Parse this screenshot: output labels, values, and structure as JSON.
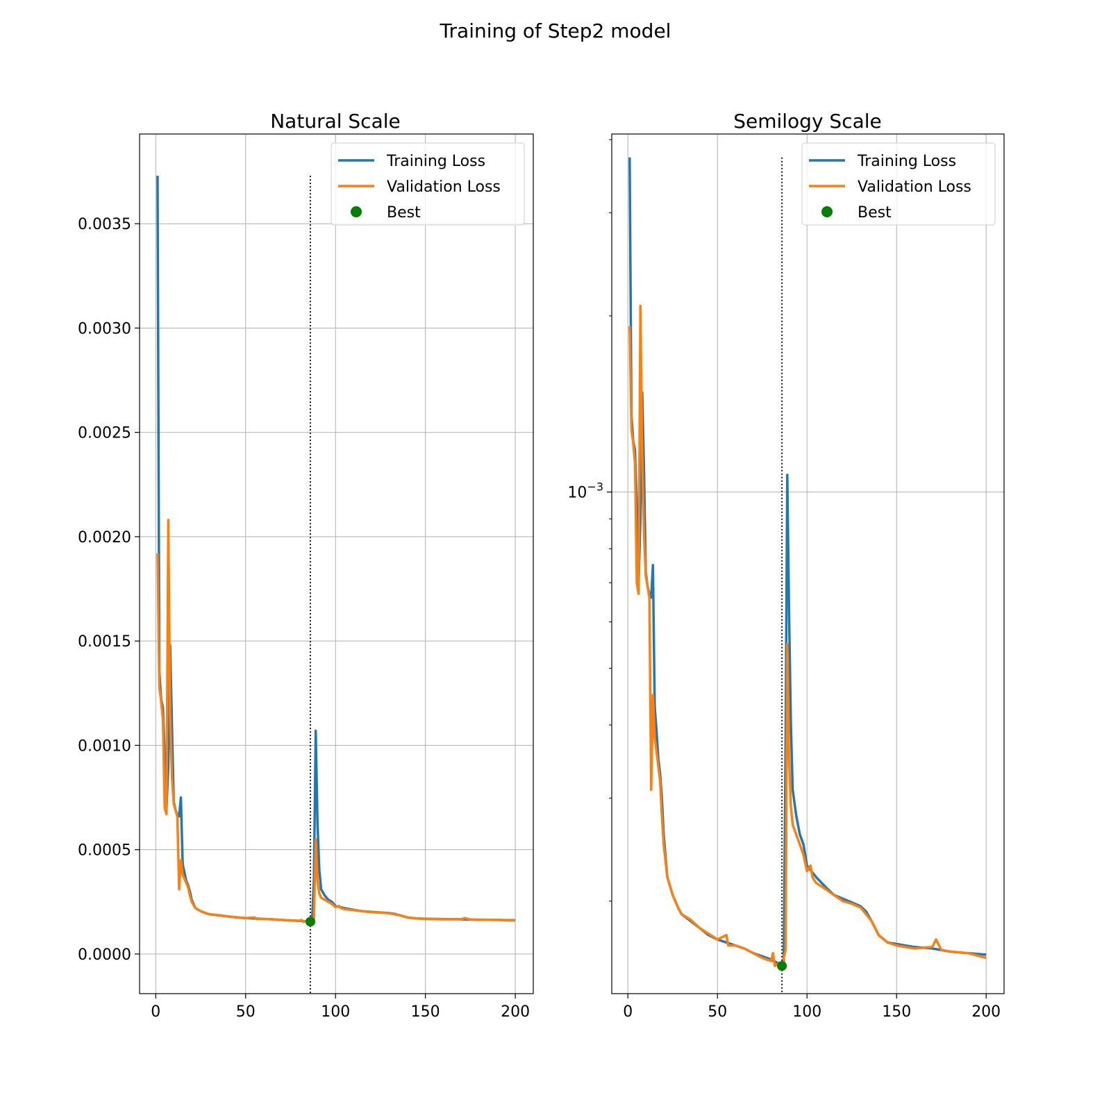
{
  "figure": {
    "title": "Training of Step2 model"
  },
  "colors": {
    "training": "#1f77b4",
    "validation": "#ff7f0e",
    "best": "#008000",
    "grid": "#b0b0b0"
  },
  "chart_data": [
    {
      "type": "line",
      "title": "Natural Scale",
      "xlabel": "",
      "ylabel": "",
      "xlim": [
        -9,
        210
      ],
      "ylim": [
        -0.00019,
        0.00393
      ],
      "yscale": "linear",
      "xticks": [
        0,
        50,
        100,
        150,
        200
      ],
      "xtick_labels": [
        "0",
        "50",
        "100",
        "150",
        "200"
      ],
      "yticks": [
        0.0,
        0.0005,
        0.001,
        0.0015,
        0.002,
        0.0025,
        0.003,
        0.0035
      ],
      "ytick_labels": [
        "0.0000",
        "0.0005",
        "0.0010",
        "0.0015",
        "0.0020",
        "0.0025",
        "0.0030",
        "0.0035"
      ],
      "grid": true,
      "legend": {
        "position": "top-right",
        "entries": [
          "Training Loss",
          "Validation Loss",
          "Best"
        ]
      },
      "vline": {
        "x": 86,
        "style": "dotted",
        "ymin": 0.0,
        "ymax": 0.00373
      },
      "best_point": {
        "x": 86,
        "y": 0.000155
      }
    },
    {
      "type": "line",
      "title": "Semilogy Scale",
      "xlabel": "",
      "ylabel": "",
      "xlim": [
        -9,
        210
      ],
      "ylim": [
        0.000139,
        0.00409
      ],
      "yscale": "log",
      "xticks": [
        0,
        50,
        100,
        150,
        200
      ],
      "xtick_labels": [
        "0",
        "50",
        "100",
        "150",
        "200"
      ],
      "major_yticks": [
        0.001
      ],
      "major_ytick_labels": [
        "10"
      ],
      "major_ytick_sup": [
        "−3"
      ],
      "minor_yticks": [
        0.0002,
        0.0003,
        0.0004,
        0.0005,
        0.0006,
        0.0007,
        0.0008,
        0.0009,
        0.002,
        0.003,
        0.004
      ],
      "grid": true,
      "legend": {
        "position": "top-right",
        "entries": [
          "Training Loss",
          "Validation Loss",
          "Best"
        ]
      },
      "vline": {
        "x": 86,
        "style": "dotted",
        "ymin": 0.000155,
        "ymax": 0.00373
      },
      "best_point": {
        "x": 86,
        "y": 0.000155
      }
    }
  ],
  "series": [
    {
      "name": "Training Loss",
      "points": [
        [
          1,
          0.00373
        ],
        [
          2,
          0.00135
        ],
        [
          3,
          0.00122
        ],
        [
          4,
          0.00118
        ],
        [
          5,
          0.00095
        ],
        [
          6,
          0.0007
        ],
        [
          7,
          0.0009
        ],
        [
          8,
          0.00148
        ],
        [
          9,
          0.0011
        ],
        [
          10,
          0.00073
        ],
        [
          11,
          0.00069
        ],
        [
          12,
          0.00067
        ],
        [
          13,
          0.00066
        ],
        [
          14,
          0.00075
        ],
        [
          15,
          0.00043
        ],
        [
          16,
          0.00039
        ],
        [
          17,
          0.00035
        ],
        [
          18,
          0.00033
        ],
        [
          19,
          0.0003
        ],
        [
          20,
          0.00026
        ],
        [
          22,
          0.00022
        ],
        [
          25,
          0.000205
        ],
        [
          28,
          0.000195
        ],
        [
          30,
          0.00019
        ],
        [
          35,
          0.000185
        ],
        [
          40,
          0.00018
        ],
        [
          45,
          0.000175
        ],
        [
          50,
          0.000172
        ],
        [
          55,
          0.00017
        ],
        [
          60,
          0.000168
        ],
        [
          65,
          0.000166
        ],
        [
          70,
          0.000163
        ],
        [
          75,
          0.000161
        ],
        [
          80,
          0.000159
        ],
        [
          85,
          0.000156
        ],
        [
          86,
          0.000155
        ],
        [
          87,
          0.000158
        ],
        [
          88,
          0.00036
        ],
        [
          89,
          0.00107
        ],
        [
          90,
          0.00062
        ],
        [
          91,
          0.0004
        ],
        [
          92,
          0.00031
        ],
        [
          94,
          0.00028
        ],
        [
          96,
          0.00026
        ],
        [
          98,
          0.00025
        ],
        [
          100,
          0.00023
        ],
        [
          105,
          0.00022
        ],
        [
          110,
          0.000212
        ],
        [
          115,
          0.000205
        ],
        [
          120,
          0.000202
        ],
        [
          125,
          0.000199
        ],
        [
          130,
          0.000196
        ],
        [
          133,
          0.000192
        ],
        [
          136,
          0.000185
        ],
        [
          140,
          0.000175
        ],
        [
          145,
          0.00017
        ],
        [
          150,
          0.000169
        ],
        [
          160,
          0.000167
        ],
        [
          170,
          0.000166
        ],
        [
          180,
          0.000164
        ],
        [
          190,
          0.000163
        ],
        [
          200,
          0.000162
        ]
      ]
    },
    {
      "name": "Validation Loss",
      "points": [
        [
          1,
          0.00192
        ],
        [
          2,
          0.00128
        ],
        [
          3,
          0.00121
        ],
        [
          4,
          0.00112
        ],
        [
          5,
          0.0007
        ],
        [
          6,
          0.00067
        ],
        [
          7,
          0.00208
        ],
        [
          8,
          0.00115
        ],
        [
          9,
          0.00085
        ],
        [
          10,
          0.00072
        ],
        [
          11,
          0.00069
        ],
        [
          12,
          0.00066
        ],
        [
          13,
          0.00031
        ],
        [
          14,
          0.00045
        ],
        [
          15,
          0.00038
        ],
        [
          16,
          0.00036
        ],
        [
          17,
          0.00034
        ],
        [
          18,
          0.00032
        ],
        [
          19,
          0.00028
        ],
        [
          20,
          0.00025
        ],
        [
          22,
          0.00022
        ],
        [
          25,
          0.000205
        ],
        [
          28,
          0.000195
        ],
        [
          30,
          0.00019
        ],
        [
          35,
          0.000186
        ],
        [
          40,
          0.00018
        ],
        [
          45,
          0.000176
        ],
        [
          50,
          0.000172
        ],
        [
          55,
          0.000175
        ],
        [
          56,
          0.000168
        ],
        [
          60,
          0.000168
        ],
        [
          65,
          0.000166
        ],
        [
          70,
          0.000163
        ],
        [
          75,
          0.00016
        ],
        [
          80,
          0.000158
        ],
        [
          81,
          0.000163
        ],
        [
          82,
          0.000155
        ],
        [
          85,
          0.000157
        ],
        [
          86,
          0.000155
        ],
        [
          87,
          0.00016
        ],
        [
          88,
          0.000165
        ],
        [
          89,
          0.00055
        ],
        [
          90,
          0.00035
        ],
        [
          91,
          0.00029
        ],
        [
          92,
          0.00027
        ],
        [
          94,
          0.00026
        ],
        [
          96,
          0.00025
        ],
        [
          98,
          0.00024
        ],
        [
          100,
          0.000225
        ],
        [
          102,
          0.00023
        ],
        [
          103,
          0.00022
        ],
        [
          105,
          0.000215
        ],
        [
          110,
          0.00021
        ],
        [
          115,
          0.000205
        ],
        [
          120,
          0.0002
        ],
        [
          125,
          0.000198
        ],
        [
          130,
          0.000195
        ],
        [
          133,
          0.00019
        ],
        [
          136,
          0.000185
        ],
        [
          140,
          0.000175
        ],
        [
          145,
          0.00017
        ],
        [
          150,
          0.000168
        ],
        [
          160,
          0.000166
        ],
        [
          170,
          0.000167
        ],
        [
          172,
          0.000172
        ],
        [
          175,
          0.000165
        ],
        [
          180,
          0.000164
        ],
        [
          190,
          0.000163
        ],
        [
          200,
          0.00016
        ]
      ]
    }
  ]
}
